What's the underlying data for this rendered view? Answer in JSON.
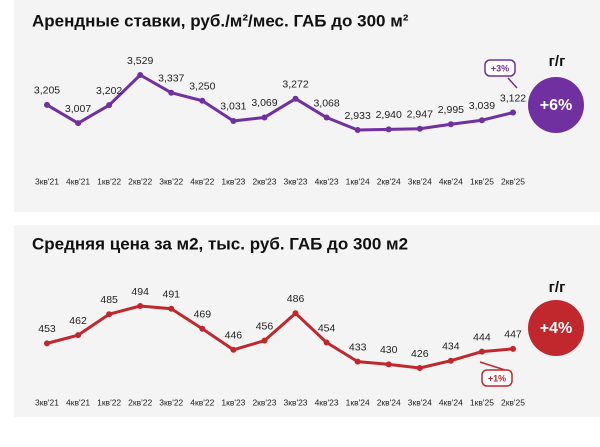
{
  "chart_data": [
    {
      "type": "line",
      "title": "Арендные ставки, руб./м²/мес. ГАБ до 300 м²",
      "categories": [
        "3кв'21",
        "4кв'21",
        "1кв'22",
        "2кв'22",
        "3кв'22",
        "4кв'22",
        "1кв'23",
        "2кв'23",
        "3кв'23",
        "4кв'23",
        "1кв'24",
        "2кв'24",
        "3кв'24",
        "4кв'24",
        "1кв'25",
        "2кв'25"
      ],
      "values": [
        3205,
        3007,
        3202,
        3529,
        3337,
        3250,
        3031,
        3069,
        3272,
        3068,
        2933,
        2940,
        2947,
        2995,
        3039,
        3122
      ],
      "value_labels": [
        "3,205",
        "3,007",
        "3,202",
        "3,529",
        "3,337",
        "3,250",
        "3,031",
        "3,069",
        "3,272",
        "3,068",
        "2,933",
        "2,940",
        "2,947",
        "2,995",
        "3,039",
        "3,122"
      ],
      "color": "#7030a0",
      "yoy_label": "г/г",
      "yoy_change": "+6%",
      "recent_change": "+3%"
    },
    {
      "type": "line",
      "title": "Средняя цена за м2, тыс. руб. ГАБ до 300 м2",
      "categories": [
        "3кв'21",
        "4кв'21",
        "1кв'22",
        "2кв'22",
        "3кв'22",
        "4кв'22",
        "1кв'23",
        "2кв'23",
        "3кв'23",
        "4кв'23",
        "1кв'24",
        "2кв'24",
        "3кв'24",
        "4кв'24",
        "1кв'25",
        "2кв'25"
      ],
      "values": [
        453,
        462,
        485,
        494,
        491,
        469,
        446,
        456,
        486,
        454,
        433,
        430,
        426,
        434,
        444,
        447
      ],
      "color": "#c0282d",
      "yoy_label": "г/г",
      "yoy_change": "+4%",
      "recent_change": "+1%"
    }
  ]
}
